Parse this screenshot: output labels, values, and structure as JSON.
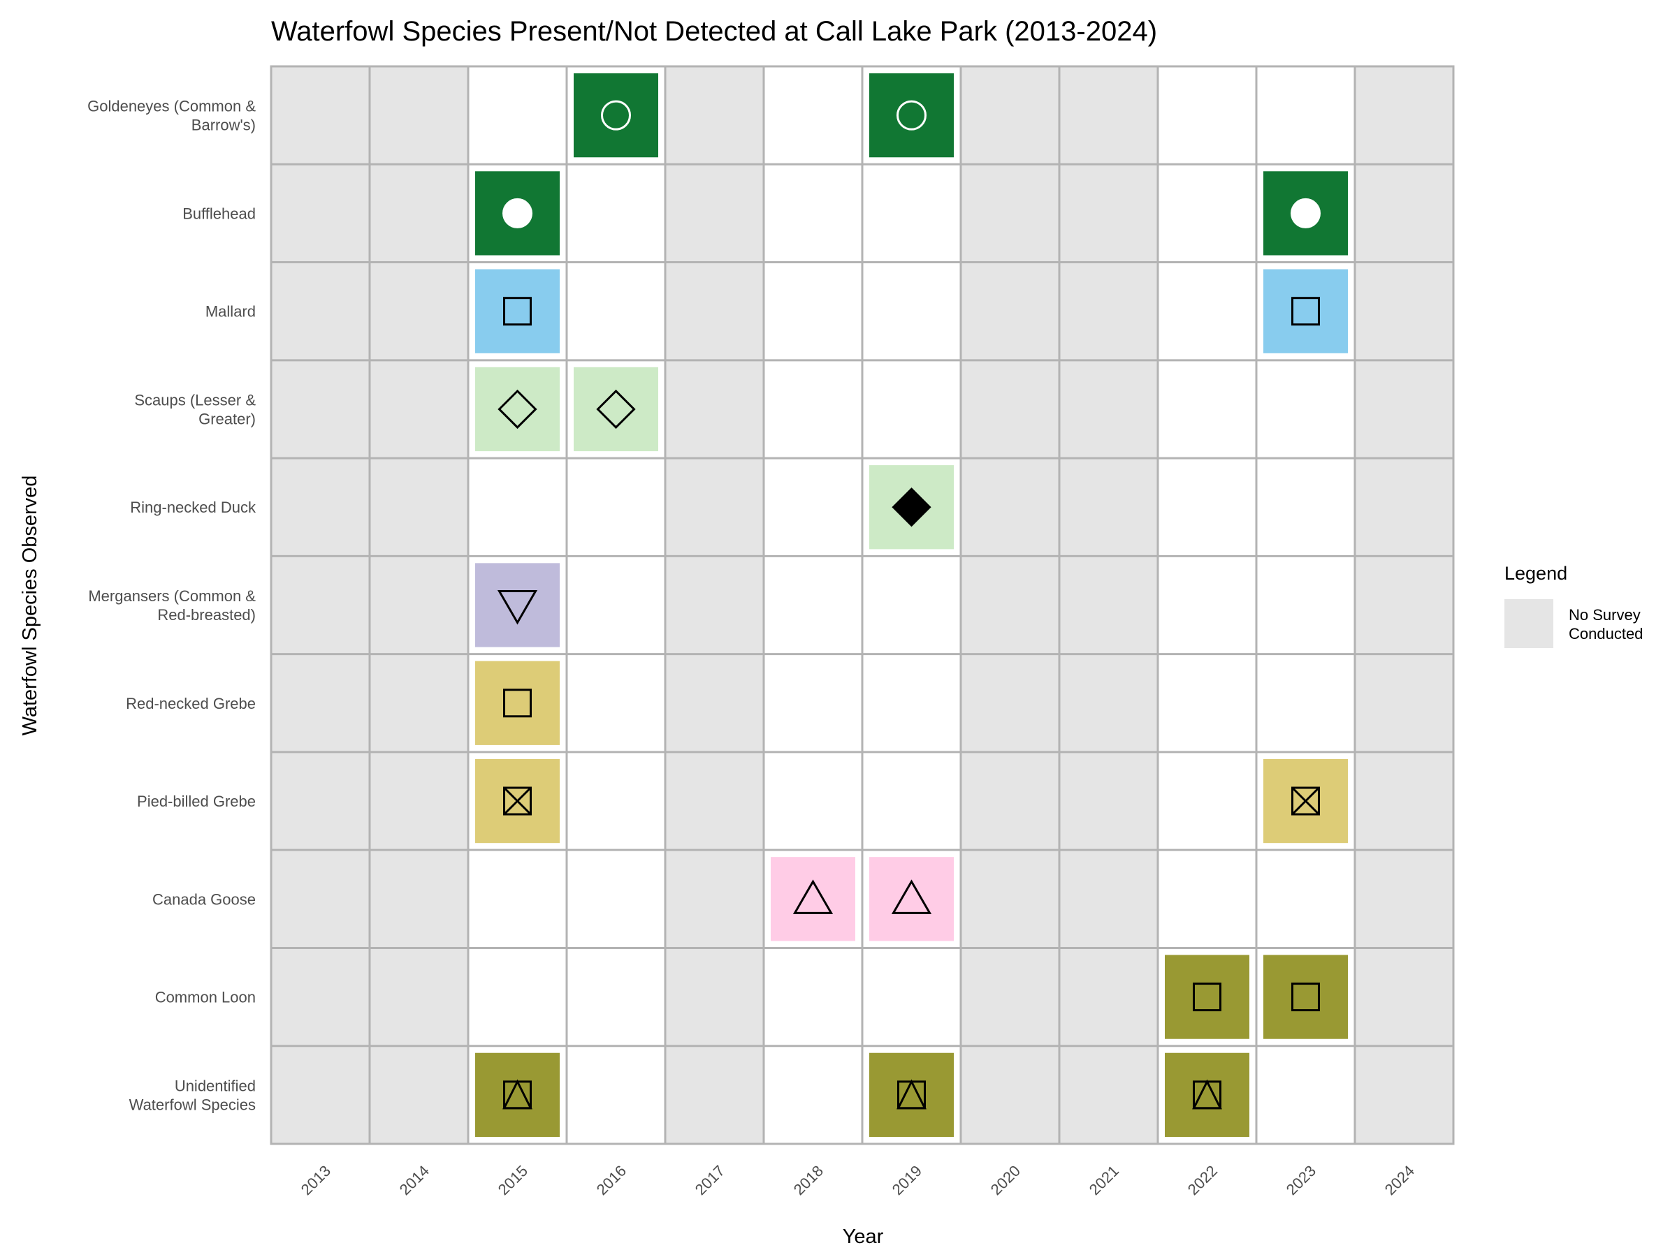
{
  "chart_data": {
    "type": "heatmap",
    "title": "Waterfowl Species Present/Not Detected at Call Lake Park (2013-2024)",
    "xlabel": "Year",
    "ylabel": "Waterfowl Species Observed",
    "years": [
      2013,
      2014,
      2015,
      2016,
      2017,
      2018,
      2019,
      2020,
      2021,
      2022,
      2023,
      2024
    ],
    "no_survey_years": [
      2013,
      2014,
      2017,
      2020,
      2021,
      2024
    ],
    "species": [
      {
        "label": "Goldeneyes (Common &\nBarrow's)",
        "color": "#117733",
        "marker": "open-circle",
        "stroke": "#ffffff",
        "present": [
          2016,
          2019
        ]
      },
      {
        "label": "Bufflehead",
        "color": "#117733",
        "marker": "filled-circle",
        "stroke": "#ffffff",
        "present": [
          2015,
          2023
        ]
      },
      {
        "label": "Mallard",
        "color": "#88ccee",
        "marker": "open-square",
        "stroke": "#000000",
        "present": [
          2015,
          2023
        ]
      },
      {
        "label": "Scaups (Lesser &\nGreater)",
        "color": "#cdeac6",
        "marker": "open-diamond",
        "stroke": "#000000",
        "present": [
          2015,
          2016
        ]
      },
      {
        "label": "Ring-necked Duck",
        "color": "#cdeac6",
        "marker": "filled-diamond",
        "stroke": "#000000",
        "present": [
          2019
        ]
      },
      {
        "label": "Mergansers (Common &\nRed-breasted)",
        "color": "#bfbbdb",
        "marker": "open-triangle-down",
        "stroke": "#000000",
        "present": [
          2015
        ]
      },
      {
        "label": "Red-necked Grebe",
        "color": "#ddcc77",
        "marker": "open-square",
        "stroke": "#000000",
        "present": [
          2015
        ]
      },
      {
        "label": "Pied-billed Grebe",
        "color": "#ddcc77",
        "marker": "square-cross",
        "stroke": "#000000",
        "present": [
          2015,
          2023
        ]
      },
      {
        "label": "Canada Goose",
        "color": "#ffcce6",
        "marker": "open-triangle",
        "stroke": "#000000",
        "present": [
          2018,
          2019
        ]
      },
      {
        "label": "Common Loon",
        "color": "#999933",
        "marker": "open-square",
        "stroke": "#000000",
        "present": [
          2022,
          2023
        ]
      },
      {
        "label": "Unidentified\nWaterfowl Species",
        "color": "#999933",
        "marker": "square-triangle",
        "stroke": "#000000",
        "present": [
          2015,
          2019,
          2022
        ]
      }
    ],
    "legend": {
      "title": "Legend",
      "position": "right",
      "items": [
        {
          "label": "No Survey\nConducted",
          "color": "#e5e5e5"
        }
      ]
    },
    "colors": {
      "no_survey": "#e5e5e5",
      "grid": "#b3b3b3",
      "panel_border": "#b3b3b3"
    }
  }
}
